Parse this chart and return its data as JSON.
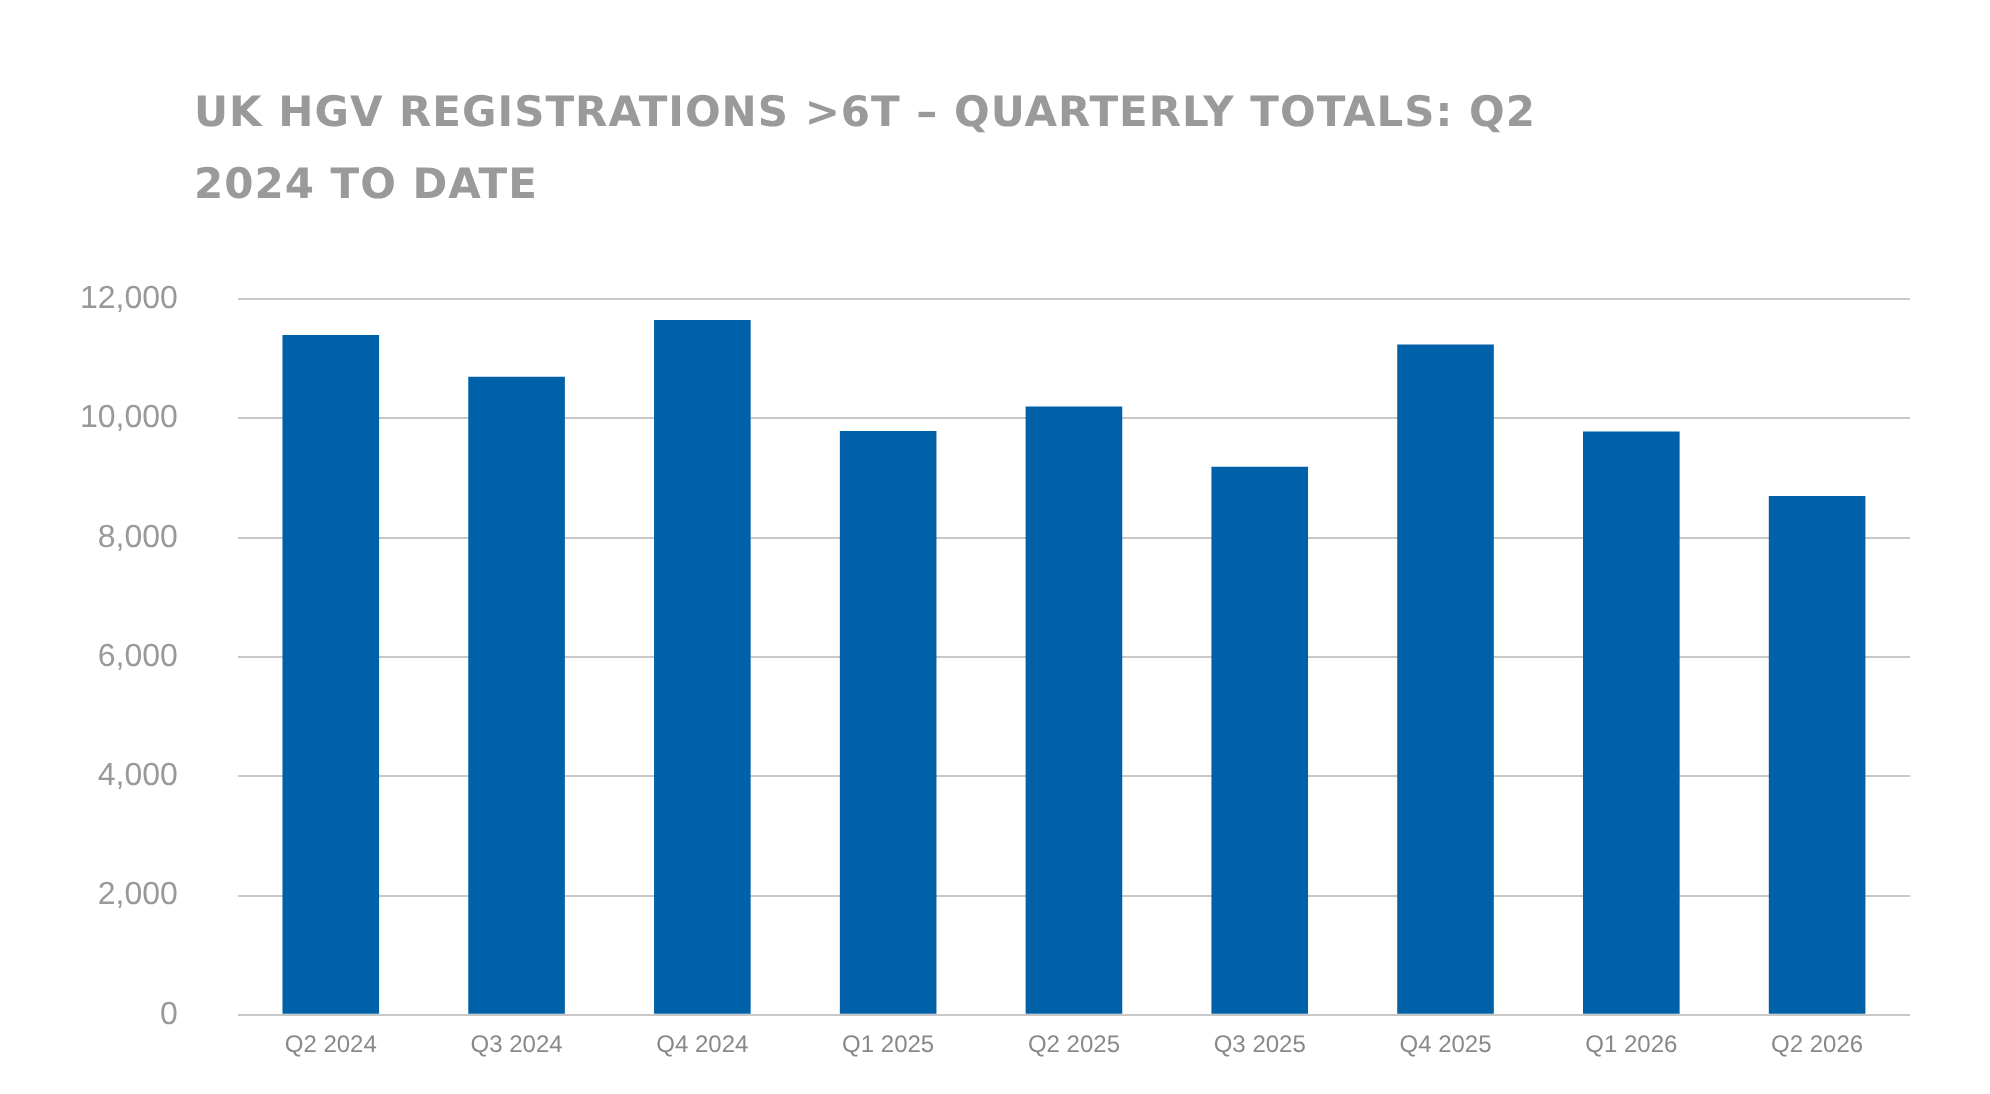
{
  "chart_data": {
    "type": "bar",
    "title": "UK HGV REGISTRATIONS >6T – QUARTERLY TOTALS: Q2 2024 TO DATE",
    "categories": [
      "Q2 2024",
      "Q3 2024",
      "Q4 2024",
      "Q1 2025",
      "Q2 2025",
      "Q3 2025",
      "Q4 2025",
      "Q1 2026",
      "Q2 2026"
    ],
    "values": [
      11400,
      10700,
      11650,
      9790,
      10200,
      9190,
      11240,
      9780,
      8700
    ],
    "color": "#0061a8",
    "ylim": [
      0,
      12000
    ],
    "yticks": [
      {
        "value": 0,
        "label": "0"
      },
      {
        "value": 2000,
        "label": "2,000"
      },
      {
        "value": 4000,
        "label": "4,000"
      },
      {
        "value": 6000,
        "label": "6,000"
      },
      {
        "value": 8000,
        "label": "8,000"
      },
      {
        "value": 10000,
        "label": "10,000"
      },
      {
        "value": 12000,
        "label": "12,000"
      }
    ],
    "grid": "y"
  }
}
